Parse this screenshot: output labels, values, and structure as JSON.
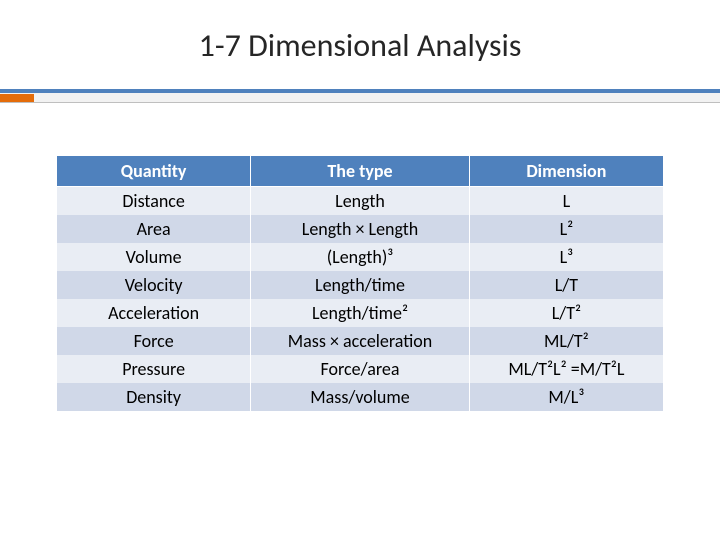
{
  "slide": {
    "title": "1-7 Dimensional Analysis"
  },
  "table": {
    "type": "table",
    "header_bg": "#4f81bd",
    "header_fg": "#ffffff",
    "row_odd_bg": "#e9edf4",
    "row_even_bg": "#d0d8e8",
    "border_color": "#ffffff",
    "font_size_pt": 14,
    "columns": [
      {
        "label": "Quantity",
        "width_pct": 32,
        "align": "center"
      },
      {
        "label": "The type",
        "width_pct": 36,
        "align": "center"
      },
      {
        "label": "Dimension",
        "width_pct": 32,
        "align": "center"
      }
    ],
    "rows": [
      {
        "quantity": "Distance",
        "type": "Length",
        "dimension": "L"
      },
      {
        "quantity": "Area",
        "type": "Length × Length",
        "dimension": "L²"
      },
      {
        "quantity": "Volume",
        "type": "(Length)³",
        "dimension": "L³"
      },
      {
        "quantity": "Velocity",
        "type": "Length/time",
        "dimension": "L/T"
      },
      {
        "quantity": "Acceleration",
        "type": "Length/time²",
        "dimension": "L/T²"
      },
      {
        "quantity": "Force",
        "type": "Mass × acceleration",
        "dimension": "ML/T²"
      },
      {
        "quantity": "Pressure",
        "type": "Force/area",
        "dimension": "ML/T²L² =M/T²L"
      },
      {
        "quantity": "Density",
        "type": "Mass/volume",
        "dimension": "M/L³"
      }
    ]
  },
  "accent": {
    "bar_color": "#4f81bd",
    "tab_color": "#e46c0a",
    "background_color": "#ffffff"
  }
}
